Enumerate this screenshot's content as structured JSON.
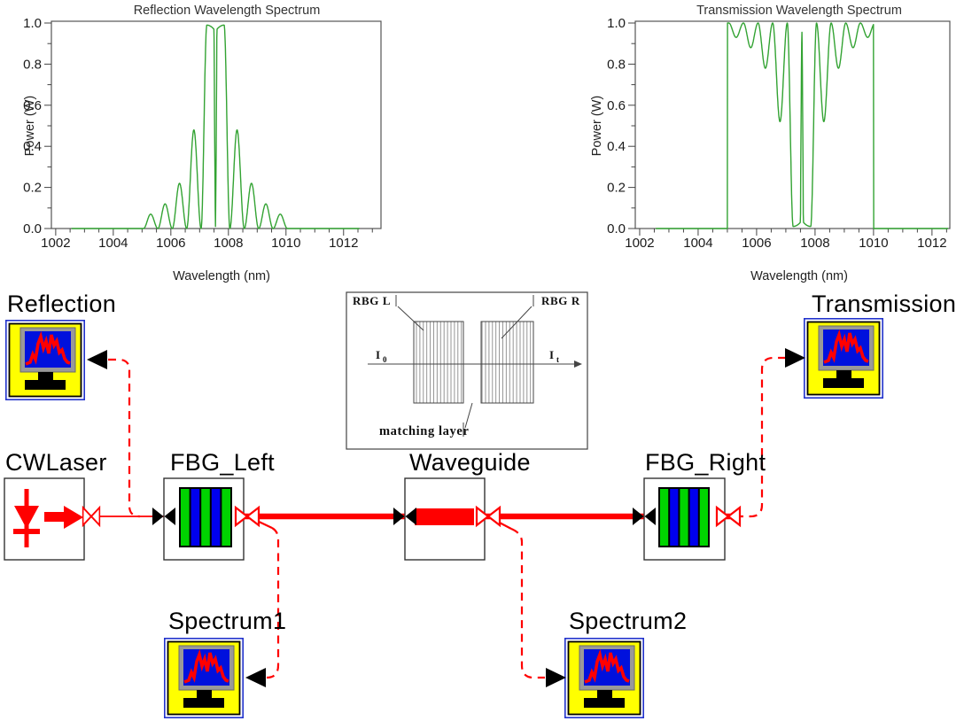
{
  "chart_data": [
    {
      "id": "reflection",
      "type": "line",
      "title": "Reflection Wavelength Spectrum",
      "xlabel": "Wavelength (nm)",
      "ylabel": "Power (W)",
      "xlim": [
        1001.85,
        1013.3
      ],
      "ylim": [
        0,
        1
      ],
      "xticks": [
        1002,
        1004,
        1006,
        1008,
        1010,
        1012
      ],
      "yticks": [
        0,
        0.2,
        0.4,
        0.6,
        0.8,
        1
      ],
      "x_minor_step": 0.5,
      "y_minor_step": 0.1,
      "grid": false,
      "line_color": "#33a333",
      "trace_span": [
        1002.55,
        1012.55
      ],
      "spectrum": {
        "kind": "fbg_reflection",
        "center_nm": 1007.55,
        "band_zero_halfwidth_nm": 0.5,
        "band_peak_w": 0.99,
        "plateau_inner_nm": 0.3,
        "notch_halfwidth_nm": 0.05,
        "notch_floor_w": 0.01,
        "sidelobe_period_nm": 0.5,
        "sidelobe_peaks_w": [
          0.48,
          0.22,
          0.12,
          0.07
        ]
      },
      "key_points": [
        [
          1005.3,
          0.07
        ],
        [
          1005.8,
          0.12
        ],
        [
          1006.3,
          0.22
        ],
        [
          1006.8,
          0.48
        ],
        [
          1007.3,
          0.99
        ],
        [
          1007.55,
          0.01
        ],
        [
          1007.8,
          0.99
        ],
        [
          1008.3,
          0.48
        ],
        [
          1008.8,
          0.22
        ],
        [
          1009.3,
          0.12
        ],
        [
          1009.8,
          0.07
        ]
      ]
    },
    {
      "id": "transmission",
      "type": "line",
      "title": "Transmission Wavelength Spectrum",
      "xlabel": "Wavelength (nm)",
      "ylabel": "Power (W)",
      "xlim": [
        1001.85,
        1012.61
      ],
      "ylim": [
        0,
        1
      ],
      "xticks": [
        1002,
        1004,
        1006,
        1008,
        1010,
        1012
      ],
      "yticks": [
        0,
        0.2,
        0.4,
        0.6,
        0.8,
        1
      ],
      "x_minor_step": 0.5,
      "y_minor_step": 0.1,
      "grid": false,
      "line_color": "#33a333",
      "trace_span": [
        1002.55,
        1012.55
      ],
      "spectrum": {
        "kind": "fbg_transmission",
        "center_nm": 1007.55,
        "band_zero_halfwidth_nm": 0.5,
        "band_peak_w": 0.99,
        "plateau_inner_nm": 0.3,
        "notch_halfwidth_nm": 0.05,
        "notch_floor_w": 0.01,
        "sidelobe_period_nm": 0.5,
        "sidelobe_peaks_w": [
          0.48,
          0.22,
          0.12,
          0.07
        ],
        "window_nm": [
          1005,
          1010
        ],
        "center_spike_w": 0.955
      },
      "key_points": [
        [
          1005,
          1.0
        ],
        [
          1005.3,
          0.93
        ],
        [
          1005.8,
          0.88
        ],
        [
          1006.3,
          0.78
        ],
        [
          1006.8,
          0.53
        ],
        [
          1007.3,
          0.01
        ],
        [
          1007.55,
          0.955
        ],
        [
          1007.8,
          0.01
        ],
        [
          1008.3,
          0.53
        ],
        [
          1008.8,
          0.78
        ],
        [
          1009.3,
          0.88
        ],
        [
          1009.8,
          0.93
        ],
        [
          1010,
          0.0
        ]
      ]
    }
  ],
  "schematic": {
    "components": {
      "reflection_monitor": {
        "label": "Reflection"
      },
      "cwlaser": {
        "label": "CWLaser"
      },
      "fbg_left": {
        "label": "FBG_Left"
      },
      "waveguide": {
        "label": "Waveguide"
      },
      "fbg_right": {
        "label": "FBG_Right"
      },
      "transmission_monitor": {
        "label": "Transmission"
      },
      "spectrum1_monitor": {
        "label": "Spectrum1"
      },
      "spectrum2_monitor": {
        "label": "Spectrum2"
      }
    },
    "inset": {
      "grating_left_label": "RBG L",
      "grating_right_label": "RBG R",
      "matching_layer_label": "matching layer",
      "input_intensity": "I",
      "input_intensity_sub": "0",
      "transmitted_intensity": "I",
      "transmitted_intensity_sub": "t"
    },
    "colors": {
      "wire": "#ff0000",
      "grating_green": "#00d400",
      "grating_blue": "#0000ee",
      "monitor_yellow": "#ffff00",
      "monitor_screen": "#0011dd",
      "monitor_border": "#2233cc",
      "trace_red": "#ff0000",
      "spectrum_green": "#33a333"
    }
  }
}
